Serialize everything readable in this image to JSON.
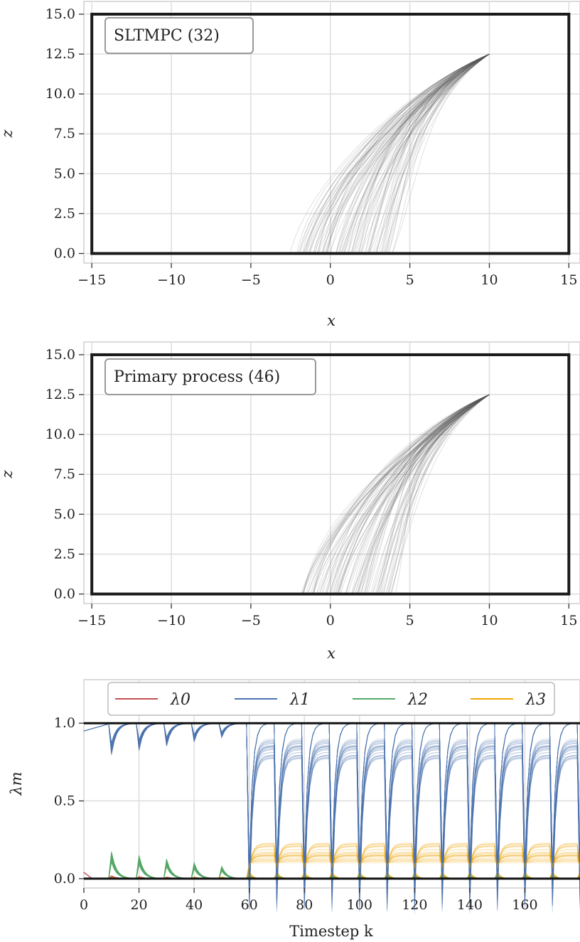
{
  "chart_data": [
    {
      "type": "line",
      "annotation": "SLTMPC (32)",
      "xlabel": "x",
      "ylabel": "z",
      "xlim": [
        -15.5,
        15.7
      ],
      "ylim": [
        -0.6,
        15.8
      ],
      "xticks": [
        -15,
        -10,
        -5,
        0,
        5,
        10,
        15
      ],
      "xtick_labels": [
        "−15",
        "−10",
        "−5",
        "0",
        "5",
        "10",
        "15"
      ],
      "yticks": [
        0.0,
        2.5,
        5.0,
        7.5,
        10.0,
        12.5,
        15.0
      ],
      "ytick_labels": [
        "0.0",
        "2.5",
        "5.0",
        "7.5",
        "10.0",
        "12.5",
        "15.0"
      ],
      "grid": true,
      "boundary": {
        "x": [
          -15,
          15
        ],
        "z": [
          0,
          15
        ],
        "color": "#1a1a1a"
      },
      "trajectories": {
        "count": 90,
        "start": [
          10,
          12.5
        ],
        "end_x_range": [
          -2.3,
          3.8
        ],
        "end_z": 0,
        "color": "#555555"
      }
    },
    {
      "type": "line",
      "annotation": "Primary process (46)",
      "xlabel": "x",
      "ylabel": "z",
      "xlim": [
        -15.5,
        15.7
      ],
      "ylim": [
        -0.6,
        15.8
      ],
      "xticks": [
        -15,
        -10,
        -5,
        0,
        5,
        10,
        15
      ],
      "xtick_labels": [
        "−15",
        "−10",
        "−5",
        "0",
        "5",
        "10",
        "15"
      ],
      "yticks": [
        0.0,
        2.5,
        5.0,
        7.5,
        10.0,
        12.5,
        15.0
      ],
      "ytick_labels": [
        "0.0",
        "2.5",
        "5.0",
        "7.5",
        "10.0",
        "12.5",
        "15.0"
      ],
      "grid": true,
      "boundary": {
        "x": [
          -15,
          15
        ],
        "z": [
          0,
          15
        ],
        "color": "#1a1a1a"
      },
      "trajectories": {
        "count": 90,
        "start": [
          10,
          12.5
        ],
        "end_x_range": [
          -2.0,
          4.0
        ],
        "end_z": 0,
        "color": "#555555"
      }
    },
    {
      "type": "line",
      "xlabel": "Timestep k",
      "ylabel": "λm",
      "xlim": [
        0,
        180
      ],
      "ylim": [
        -0.06,
        1.28
      ],
      "xticks": [
        0,
        20,
        40,
        60,
        80,
        100,
        120,
        140,
        160
      ],
      "xtick_labels": [
        "0",
        "20",
        "40",
        "60",
        "80",
        "100",
        "120",
        "140",
        "160"
      ],
      "yticks": [
        0.0,
        0.5,
        1.0
      ],
      "ytick_labels": [
        "0.0",
        "0.5",
        "1.0"
      ],
      "grid": true,
      "reference_lines": [
        0.0,
        1.0
      ],
      "reset_period": 10,
      "series": [
        {
          "name": "λ0",
          "sub": "0",
          "color": "#c44e52"
        },
        {
          "name": "λ1",
          "sub": "1",
          "color": "#4c72b0"
        },
        {
          "name": "λ2",
          "sub": "2",
          "color": "#55a868"
        },
        {
          "name": "λ3",
          "sub": "3",
          "color": "#f0a500"
        }
      ],
      "legend_position": "top"
    }
  ]
}
